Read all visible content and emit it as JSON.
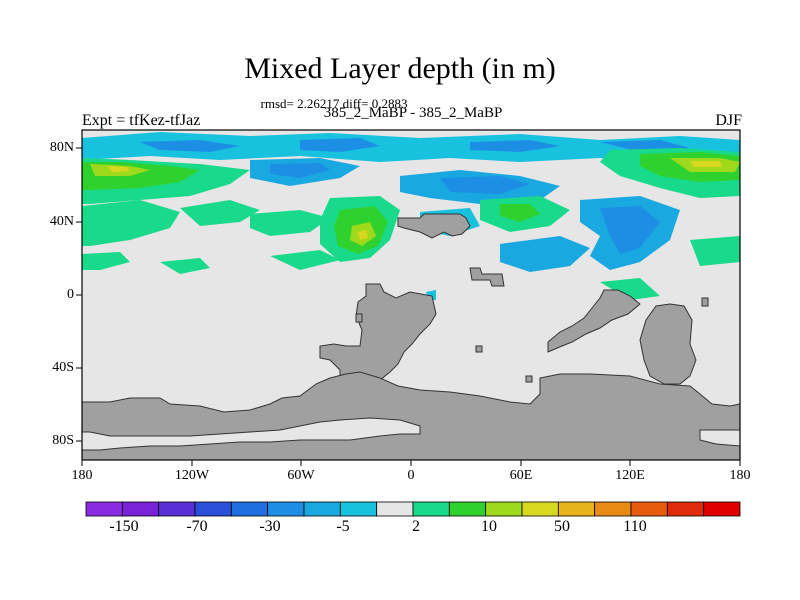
{
  "title": "Mixed Layer depth (in m)",
  "stats_line": "rmsd= 2.26217 diff= 0.2883",
  "case_line": "385_2_MaBP - 385_2_MaBP",
  "left_label": "Expt = tfKez-tfJaz",
  "right_label": "DJF",
  "y_ticks": [
    "80N",
    "40N",
    "0",
    "40S",
    "80S"
  ],
  "x_ticks": [
    "180",
    "120W",
    "60W",
    "0",
    "60E",
    "120E",
    "180"
  ],
  "colorbar": {
    "colors": [
      "#8a2be2",
      "#7a22d8",
      "#5b2fd6",
      "#2a4fd8",
      "#1f6fe0",
      "#1c8fe4",
      "#1aa8e0",
      "#18c1dd",
      "#e6e6e6",
      "#19d98a",
      "#2fd12f",
      "#9fd91c",
      "#d8d820",
      "#e8b41c",
      "#e88a14",
      "#e85a10",
      "#e02a0c",
      "#e00000"
    ],
    "labels": [
      "-150",
      "-70",
      "-30",
      "-5",
      "2",
      "10",
      "50",
      "110"
    ]
  },
  "legend_colors": {
    "land": "#a0a0a0",
    "near_zero": "#e6e6e6",
    "positive_light": "#19d98a",
    "positive_mid": "#2fd12f",
    "positive_high": "#9fd91c",
    "positive_peak": "#d8d820",
    "negative_light": "#18c1dd",
    "negative_mid": "#1aa8e0",
    "negative_deep": "#1c8fe4"
  }
}
